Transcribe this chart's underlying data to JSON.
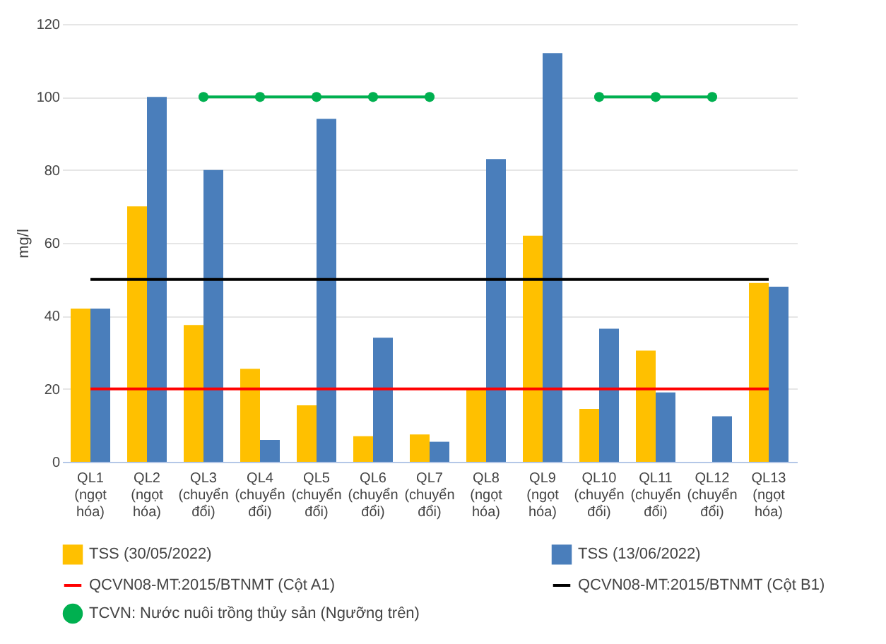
{
  "chart_data": {
    "type": "bar",
    "ylabel": "mg/l",
    "categories": [
      "QL1 (ngọt hóa)",
      "QL2 (ngọt hóa)",
      "QL3 (chuyển đổi)",
      "QL4 (chuyển đổi)",
      "QL5 (chuyển đổi)",
      "QL6 (chuyển đổi)",
      "QL7 (chuyển đổi)",
      "QL8 (ngọt hóa)",
      "QL9 (ngọt hóa)",
      "QL10 (chuyển đổi)",
      "QL11 (chuyển đổi)",
      "QL12 (chuyển đổi)",
      "QL13 (ngọt hóa)"
    ],
    "series": [
      {
        "name": "TSS (30/05/2022)",
        "color": "#ffc000",
        "values": [
          42,
          70,
          37.5,
          25.5,
          15.5,
          7,
          7.5,
          20,
          62,
          14.5,
          30.5,
          null,
          49
        ]
      },
      {
        "name": "TSS (13/06/2022)",
        "color": "#4a7ebb",
        "values": [
          42,
          100,
          80,
          6,
          94,
          34,
          5.5,
          83,
          112,
          36.5,
          19,
          12.5,
          48
        ]
      },
      {
        "name": "QCVN08-MT:2015/BTNMT (Cột A1)",
        "type": "line",
        "color": "#ff0000",
        "values": [
          20,
          20,
          20,
          20,
          20,
          20,
          20,
          20,
          20,
          20,
          20,
          20,
          20
        ]
      },
      {
        "name": "QCVN08-MT:2015/BTNMT (Cột B1)",
        "type": "line",
        "color": "#000000",
        "values": [
          50,
          50,
          50,
          50,
          50,
          50,
          50,
          50,
          50,
          50,
          50,
          50,
          50
        ]
      },
      {
        "name": "TCVN: Nước nuôi trồng thủy sản (Ngưỡng trên)",
        "type": "line",
        "marker": "circle",
        "color": "#00b050",
        "values": [
          null,
          null,
          100,
          100,
          100,
          100,
          100,
          null,
          null,
          100,
          100,
          100,
          null
        ]
      }
    ],
    "ylim": [
      0,
      120
    ],
    "yticks": [
      0,
      20,
      40,
      60,
      80,
      100,
      120
    ],
    "grid": "y",
    "legend": "bottom"
  }
}
